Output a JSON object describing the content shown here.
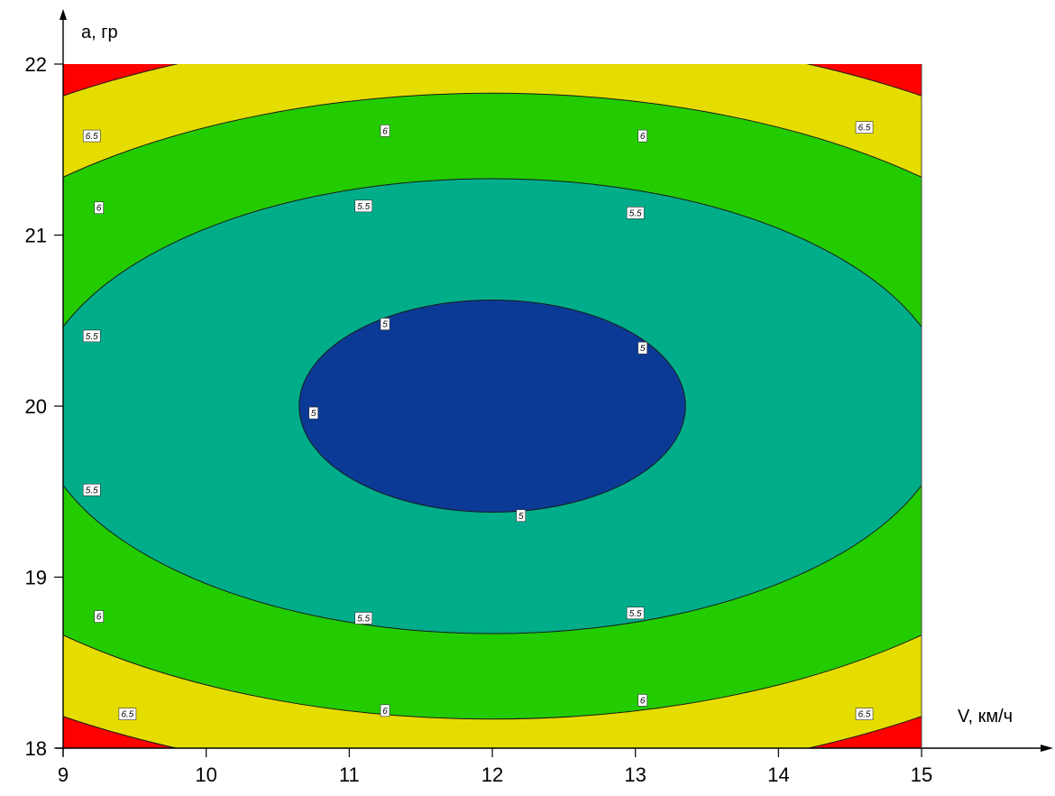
{
  "chart_data": {
    "type": "contour",
    "xlabel": "V, км/ч",
    "ylabel": "a, гр",
    "xlim": [
      9,
      15
    ],
    "ylim": [
      18,
      22
    ],
    "x_ticks": [
      "9",
      "10",
      "11",
      "12",
      "13",
      "14",
      "15"
    ],
    "y_ticks": [
      "18",
      "19",
      "20",
      "21",
      "22"
    ],
    "grid": false,
    "center": {
      "x": 12,
      "y": 20
    },
    "levels": [
      5,
      5.5,
      6,
      6.5
    ],
    "level_labels": [
      "5",
      "5.5",
      "6",
      "6.5"
    ],
    "colors": {
      "below_5": "#0b3a96",
      "5_to_5.5": "#00ad8b",
      "5.5_to_6": "#22cc00",
      "6_to_6.5": "#e5dd00",
      "above_6.5": "#ff0000"
    },
    "contours": [
      {
        "level": 5,
        "x_half_width": 1.35,
        "y_half_height": 0.62
      },
      {
        "level": 5.5,
        "x_half_width": 3.2,
        "y_half_height": 1.33
      },
      {
        "level": 6,
        "x_half_width": 4.4,
        "y_half_height": 1.83
      },
      {
        "level": 6.5,
        "x_half_width": 5.3,
        "y_half_height": 2.2
      }
    ],
    "contour_labels": [
      {
        "text": "5",
        "x": 10.75,
        "y": 19.96
      },
      {
        "text": "5",
        "x": 11.25,
        "y": 20.48
      },
      {
        "text": "5",
        "x": 13.05,
        "y": 20.34
      },
      {
        "text": "5",
        "x": 12.2,
        "y": 19.36
      },
      {
        "text": "5.5",
        "x": 9.2,
        "y": 20.41
      },
      {
        "text": "5.5",
        "x": 9.2,
        "y": 19.51
      },
      {
        "text": "5.5",
        "x": 11.1,
        "y": 21.17
      },
      {
        "text": "5.5",
        "x": 13.0,
        "y": 21.13
      },
      {
        "text": "5.5",
        "x": 11.1,
        "y": 18.76
      },
      {
        "text": "5.5",
        "x": 13.0,
        "y": 18.79
      },
      {
        "text": "6",
        "x": 9.25,
        "y": 21.16
      },
      {
        "text": "6",
        "x": 9.25,
        "y": 18.77
      },
      {
        "text": "6",
        "x": 11.25,
        "y": 21.61
      },
      {
        "text": "6",
        "x": 13.05,
        "y": 21.58
      },
      {
        "text": "6",
        "x": 11.25,
        "y": 18.22
      },
      {
        "text": "6",
        "x": 13.05,
        "y": 18.28
      },
      {
        "text": "6.5",
        "x": 9.2,
        "y": 21.58
      },
      {
        "text": "6.5",
        "x": 14.6,
        "y": 21.63
      },
      {
        "text": "6.5",
        "x": 9.45,
        "y": 18.2
      },
      {
        "text": "6.5",
        "x": 14.6,
        "y": 18.2
      }
    ]
  }
}
